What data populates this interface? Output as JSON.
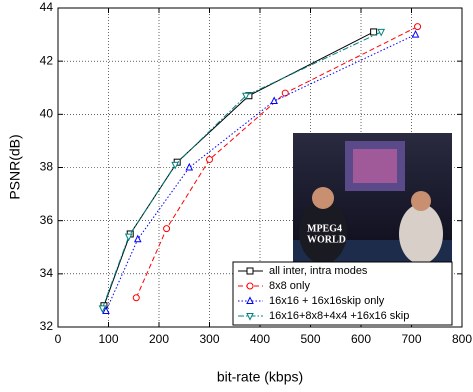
{
  "chart_data": {
    "type": "line",
    "xlabel": "bit-rate (kbps)",
    "ylabel": "PSNR(dB)",
    "xlim": [
      0,
      800
    ],
    "xticks": [
      0,
      100,
      200,
      300,
      400,
      500,
      600,
      700,
      800
    ],
    "ylim": [
      32,
      44
    ],
    "yticks": [
      32,
      34,
      36,
      38,
      40,
      42,
      44
    ],
    "grid": true,
    "legend": "lower right",
    "annotations": [
      "MPEG4",
      "WORLD"
    ],
    "series": [
      {
        "name": "all inter, intra modes",
        "color": "#000000",
        "marker": "square",
        "dash": "solid",
        "x": [
          91,
          143,
          236,
          378,
          625
        ],
        "values": [
          32.8,
          35.5,
          38.2,
          40.7,
          43.1
        ]
      },
      {
        "name": "8x8 only",
        "color": "#ff0000",
        "marker": "circle",
        "dash": "dashed",
        "x": [
          155,
          215,
          300,
          450,
          712
        ],
        "values": [
          33.1,
          35.7,
          38.3,
          40.8,
          43.3
        ]
      },
      {
        "name": "16x16 + 16x16skip only",
        "color": "#0000ff",
        "marker": "triangle-up",
        "dash": "dotted",
        "x": [
          95,
          158,
          260,
          428,
          708
        ],
        "values": [
          32.6,
          35.3,
          38.0,
          40.5,
          43.0
        ]
      },
      {
        "name": "16x16+8x8+4x4 +16x16 skip",
        "color": "#008080",
        "marker": "triangle-down",
        "dash": "dashdot",
        "x": [
          88,
          140,
          232,
          372,
          640
        ],
        "values": [
          32.7,
          35.4,
          38.1,
          40.7,
          43.1
        ]
      }
    ]
  }
}
